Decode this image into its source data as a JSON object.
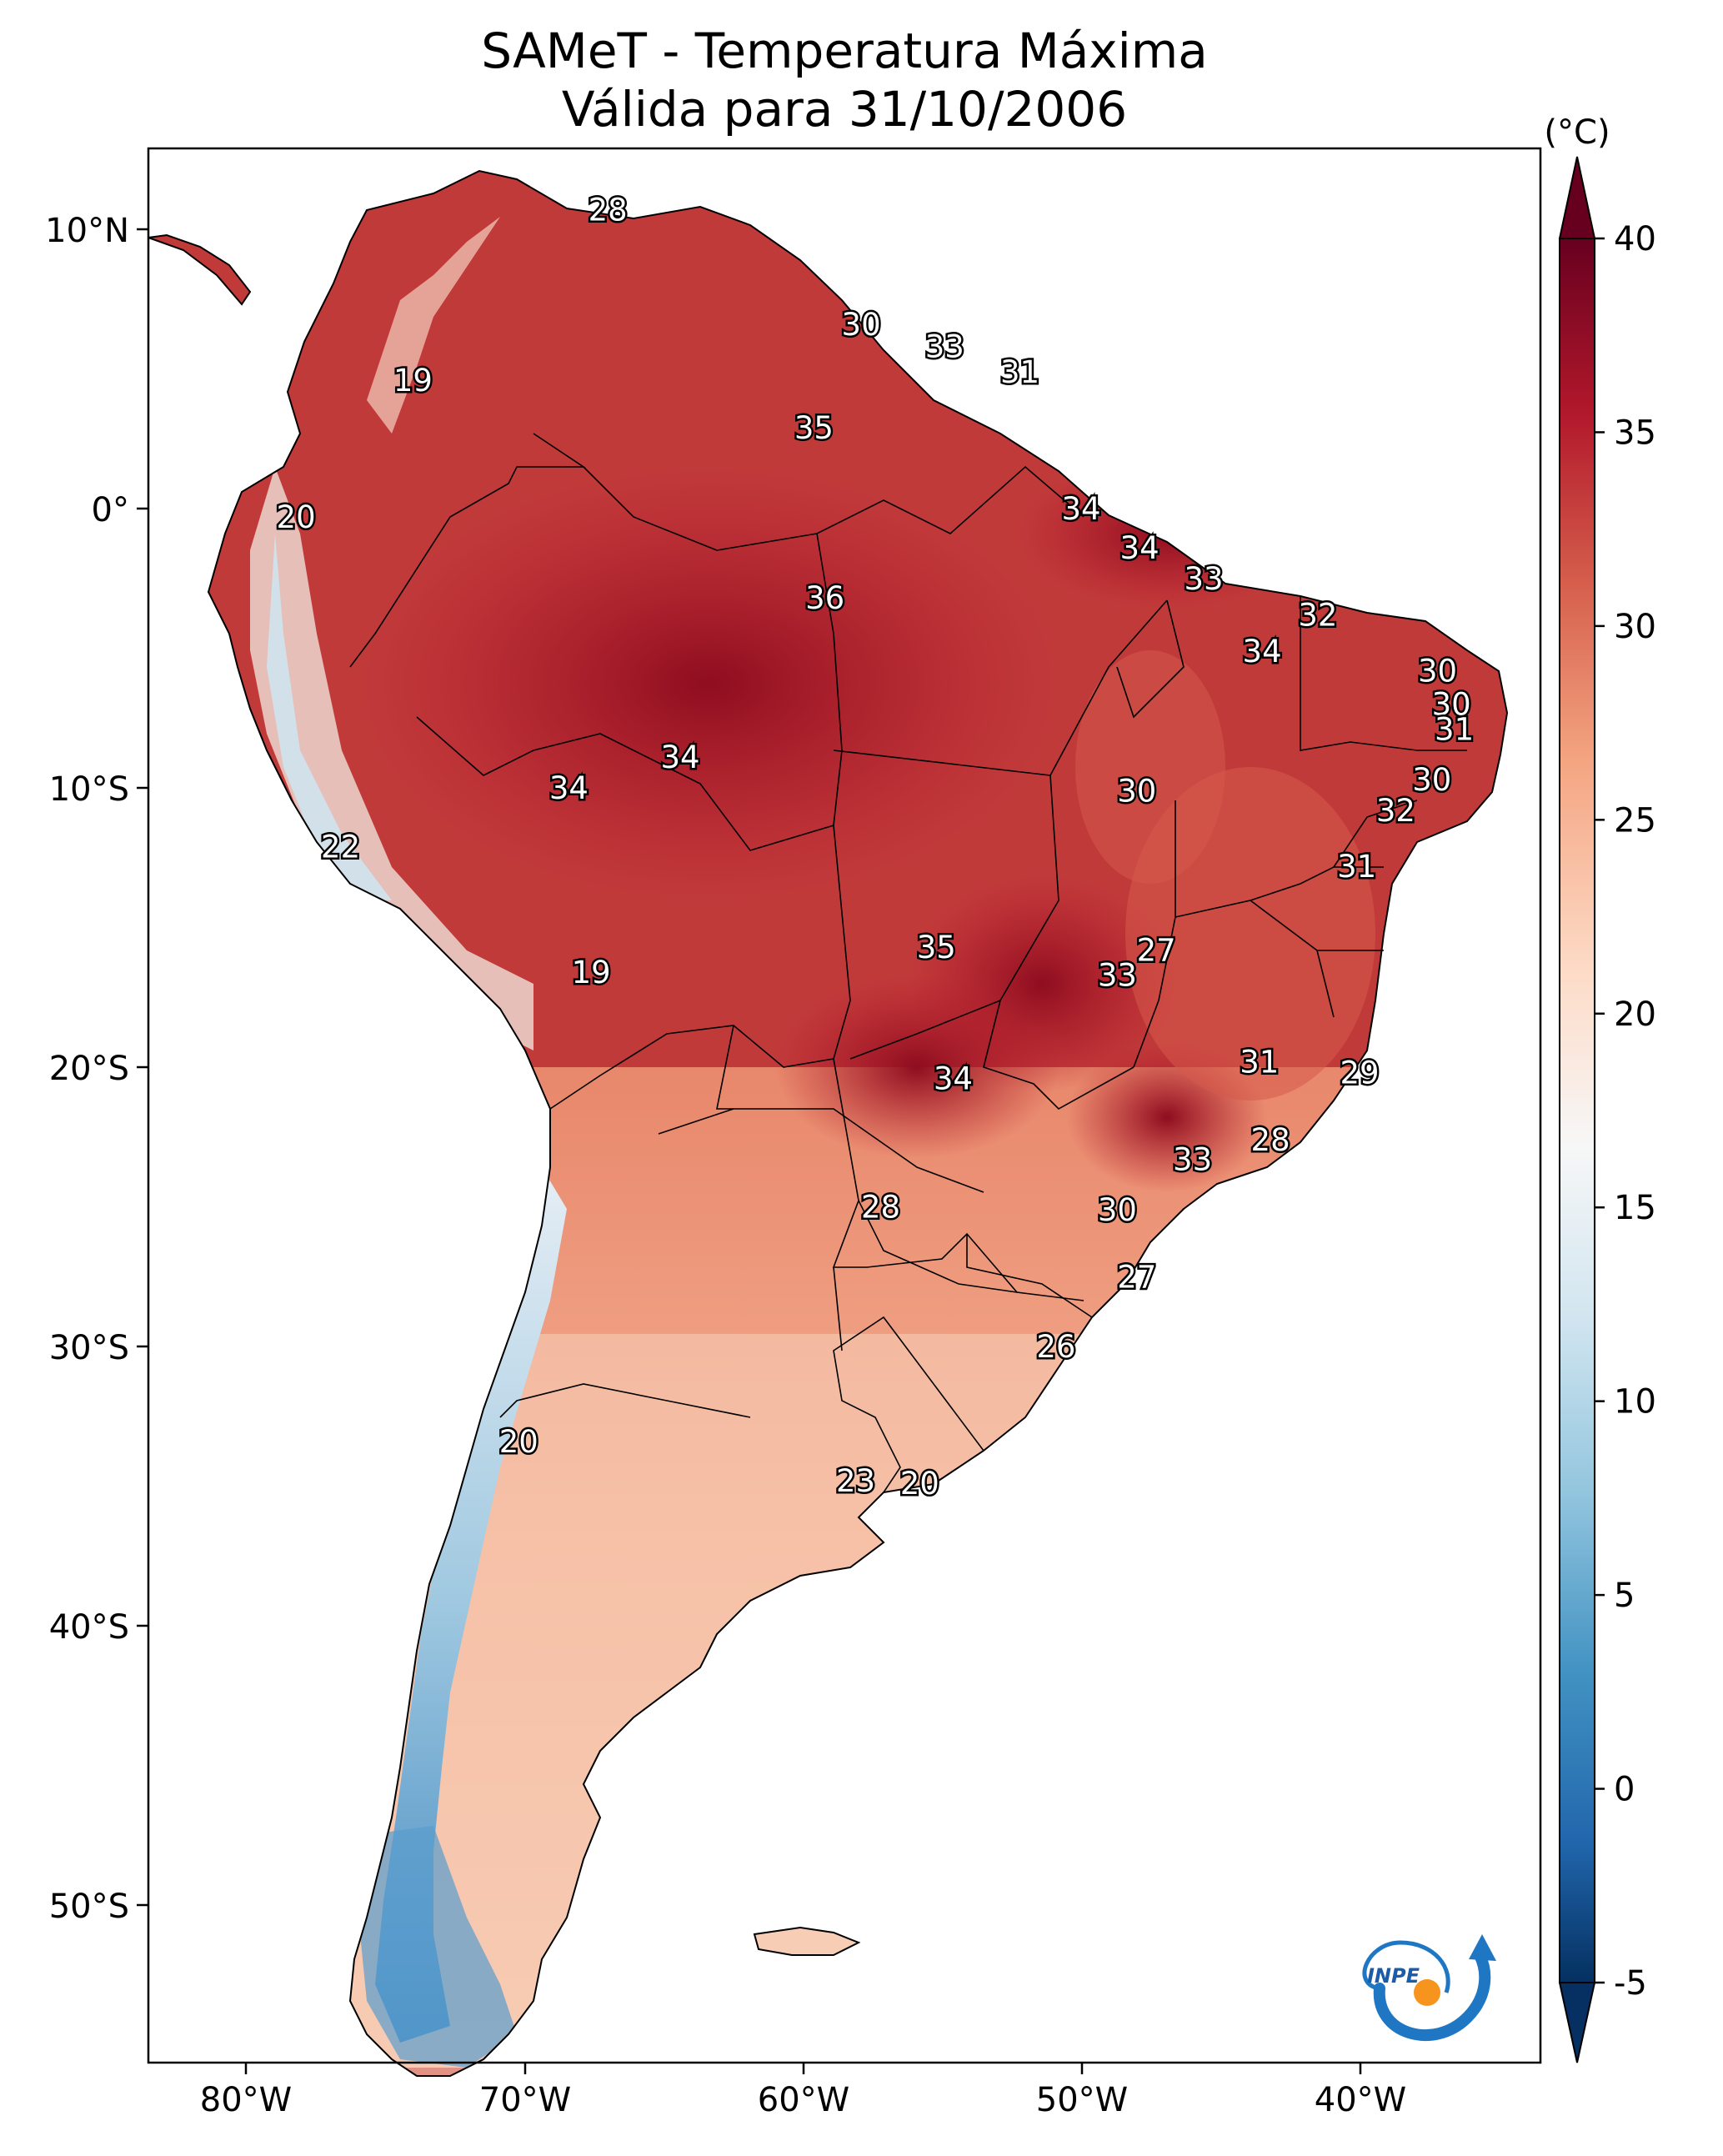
{
  "title": {
    "line1": "SAMeT - Temperatura Máxima",
    "line2": "Válida para 31/10/2006"
  },
  "map": {
    "lon_ticks": [
      "80°W",
      "70°W",
      "60°W",
      "50°W",
      "40°W"
    ],
    "lat_ticks": [
      "10°N",
      "0°",
      "10°S",
      "20°S",
      "30°S",
      "40°S",
      "50°S"
    ],
    "temperature_labels": [
      {
        "text": "28",
        "lon": -67.0,
        "lat": 10.7
      },
      {
        "text": "19",
        "lon": -74.0,
        "lat": 4.6
      },
      {
        "text": "20",
        "lon": -78.2,
        "lat": -0.3
      },
      {
        "text": "30",
        "lon": -57.9,
        "lat": 6.6
      },
      {
        "text": "33",
        "lon": -54.9,
        "lat": 5.8
      },
      {
        "text": "31",
        "lon": -52.2,
        "lat": 4.9
      },
      {
        "text": "35",
        "lon": -59.6,
        "lat": 2.9
      },
      {
        "text": "34",
        "lon": -50.0,
        "lat": 0.0
      },
      {
        "text": "34",
        "lon": -47.9,
        "lat": -1.4
      },
      {
        "text": "33",
        "lon": -45.6,
        "lat": -2.5
      },
      {
        "text": "32",
        "lon": -41.5,
        "lat": -3.8
      },
      {
        "text": "36",
        "lon": -59.2,
        "lat": -3.2
      },
      {
        "text": "34",
        "lon": -43.5,
        "lat": -5.1
      },
      {
        "text": "30",
        "lon": -37.2,
        "lat": -5.8
      },
      {
        "text": "30",
        "lon": -36.7,
        "lat": -7.0
      },
      {
        "text": "31",
        "lon": -36.6,
        "lat": -7.9
      },
      {
        "text": "34",
        "lon": -64.4,
        "lat": -8.9
      },
      {
        "text": "34",
        "lon": -68.4,
        "lat": -10.0
      },
      {
        "text": "30",
        "lon": -48.0,
        "lat": -10.1
      },
      {
        "text": "30",
        "lon": -37.4,
        "lat": -9.7
      },
      {
        "text": "32",
        "lon": -38.7,
        "lat": -10.8
      },
      {
        "text": "22",
        "lon": -76.6,
        "lat": -12.1
      },
      {
        "text": "31",
        "lon": -40.1,
        "lat": -12.8
      },
      {
        "text": "35",
        "lon": -55.2,
        "lat": -15.7
      },
      {
        "text": "27",
        "lon": -47.3,
        "lat": -15.8
      },
      {
        "text": "33",
        "lon": -48.7,
        "lat": -16.7
      },
      {
        "text": "19",
        "lon": -67.6,
        "lat": -16.6
      },
      {
        "text": "31",
        "lon": -43.6,
        "lat": -19.8
      },
      {
        "text": "29",
        "lon": -40.0,
        "lat": -20.2
      },
      {
        "text": "34",
        "lon": -54.6,
        "lat": -20.4
      },
      {
        "text": "28",
        "lon": -43.2,
        "lat": -22.6
      },
      {
        "text": "33",
        "lon": -46.0,
        "lat": -23.3
      },
      {
        "text": "28",
        "lon": -57.2,
        "lat": -25.0
      },
      {
        "text": "30",
        "lon": -48.7,
        "lat": -25.1
      },
      {
        "text": "27",
        "lon": -48.0,
        "lat": -27.5
      },
      {
        "text": "26",
        "lon": -50.9,
        "lat": -30.0
      },
      {
        "text": "20",
        "lon": -70.2,
        "lat": -33.4
      },
      {
        "text": "23",
        "lon": -58.1,
        "lat": -34.8
      },
      {
        "text": "20",
        "lon": -55.8,
        "lat": -34.9
      }
    ]
  },
  "colorbar": {
    "unit_label": "(°C)",
    "ticks": [
      "40",
      "35",
      "30",
      "25",
      "20",
      "15",
      "10",
      "5",
      "0",
      "-5"
    ],
    "colors_top_to_bottom": [
      "#67001f",
      "#b2182b",
      "#d6604d",
      "#f4a582",
      "#fddbc7",
      "#f7f7f7",
      "#d1e5f0",
      "#92c5de",
      "#4393c3",
      "#2166ac",
      "#053061"
    ]
  },
  "logo": {
    "text": "INPE",
    "colors": {
      "arrow": "#1f77c4",
      "dot": "#f7941d"
    }
  }
}
